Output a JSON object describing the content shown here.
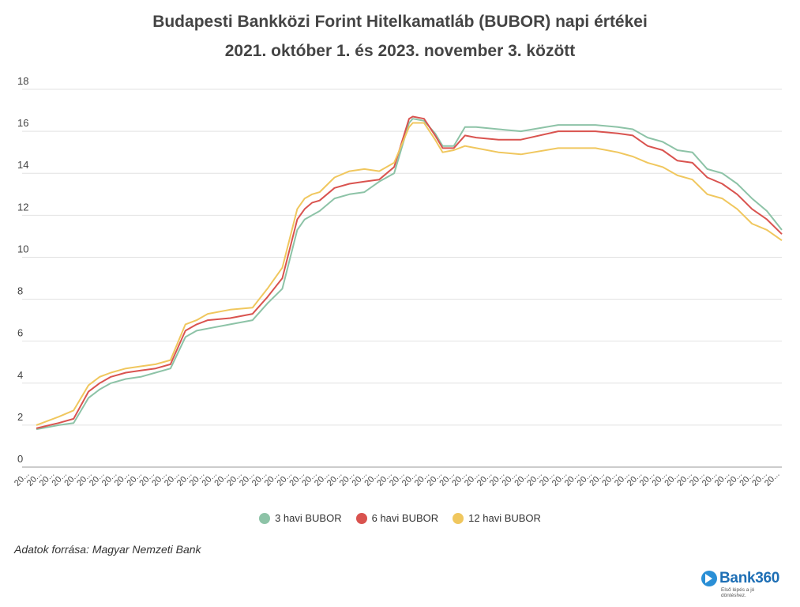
{
  "title_line1": "Budapesti Bankközi Forint Hitelkamatláb (BUBOR) napi értékei",
  "title_line2": "2021. október 1. és 2023. november 3. között",
  "source": "Adatok forrása: Magyar Nemzeti Bank",
  "logo": {
    "name": "Bank360",
    "tagline": "Első lépés a jó döntéshez."
  },
  "chart_data": {
    "type": "line",
    "title": "Budapesti Bankközi Forint Hitelkamatláb (BUBOR) napi értékei 2021. október 1. és 2023. november 3. között",
    "xlabel": "",
    "ylabel": "",
    "x_tick_label": "20...",
    "x_tick_count": 61,
    "ylim": [
      0,
      18
    ],
    "yticks": [
      0,
      2,
      4,
      6,
      8,
      10,
      12,
      14,
      16,
      18
    ],
    "grid": true,
    "legend_position": "bottom",
    "x": [
      0.0,
      0.03,
      0.05,
      0.07,
      0.085,
      0.1,
      0.12,
      0.14,
      0.16,
      0.18,
      0.2,
      0.215,
      0.23,
      0.26,
      0.29,
      0.31,
      0.33,
      0.35,
      0.36,
      0.37,
      0.38,
      0.4,
      0.42,
      0.44,
      0.46,
      0.48,
      0.5,
      0.505,
      0.52,
      0.535,
      0.545,
      0.56,
      0.575,
      0.59,
      0.62,
      0.65,
      0.7,
      0.75,
      0.78,
      0.8,
      0.82,
      0.84,
      0.86,
      0.88,
      0.9,
      0.92,
      0.94,
      0.96,
      0.98,
      1.0
    ],
    "series": [
      {
        "name": "3 havi BUBOR",
        "color": "#8dc3a7",
        "values": [
          1.8,
          2.0,
          2.1,
          3.3,
          3.7,
          4.0,
          4.2,
          4.3,
          4.5,
          4.7,
          6.2,
          6.5,
          6.6,
          6.8,
          7.0,
          7.8,
          8.5,
          11.3,
          11.8,
          12.0,
          12.2,
          12.8,
          13.0,
          13.1,
          13.6,
          14.0,
          16.4,
          16.6,
          16.5,
          15.9,
          15.3,
          15.3,
          16.2,
          16.2,
          16.1,
          16.0,
          16.3,
          16.3,
          16.2,
          16.1,
          15.7,
          15.5,
          15.1,
          15.0,
          14.2,
          14.0,
          13.5,
          12.8,
          12.2,
          11.3
        ]
      },
      {
        "name": "6 havi BUBOR",
        "color": "#d9534f",
        "values": [
          1.85,
          2.1,
          2.3,
          3.6,
          4.0,
          4.3,
          4.5,
          4.6,
          4.7,
          4.9,
          6.5,
          6.8,
          7.0,
          7.1,
          7.3,
          8.1,
          9.0,
          11.8,
          12.3,
          12.6,
          12.7,
          13.3,
          13.5,
          13.6,
          13.7,
          14.3,
          16.6,
          16.7,
          16.6,
          15.8,
          15.2,
          15.2,
          15.8,
          15.7,
          15.6,
          15.6,
          16.0,
          16.0,
          15.9,
          15.8,
          15.3,
          15.1,
          14.6,
          14.5,
          13.8,
          13.5,
          13.0,
          12.3,
          11.8,
          11.1
        ]
      },
      {
        "name": "12 havi BUBOR",
        "color": "#f0c75e",
        "values": [
          2.0,
          2.4,
          2.7,
          3.9,
          4.3,
          4.5,
          4.7,
          4.8,
          4.9,
          5.1,
          6.8,
          7.0,
          7.3,
          7.5,
          7.6,
          8.5,
          9.5,
          12.3,
          12.8,
          13.0,
          13.1,
          13.8,
          14.1,
          14.2,
          14.1,
          14.5,
          16.2,
          16.4,
          16.4,
          15.6,
          15.0,
          15.1,
          15.3,
          15.2,
          15.0,
          14.9,
          15.2,
          15.2,
          15.0,
          14.8,
          14.5,
          14.3,
          13.9,
          13.7,
          13.0,
          12.8,
          12.3,
          11.6,
          11.3,
          10.8
        ]
      }
    ]
  }
}
